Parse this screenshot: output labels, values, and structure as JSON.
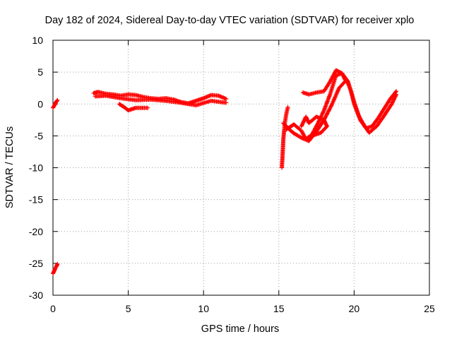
{
  "colors": {
    "series": "#ff0000",
    "axis": "#000000",
    "grid": "#a0a0a0",
    "background": "#ffffff"
  },
  "chart_data": {
    "type": "scatter",
    "title": "Day 182 of 2024, Sidereal Day-to-day VTEC variation (SDTVAR) for receiver xplo",
    "xlabel": "GPS time / hours",
    "ylabel": "SDTVAR / TECUs",
    "xlim": [
      0,
      25
    ],
    "ylim": [
      -30,
      10
    ],
    "xticks": [
      "0",
      "5",
      "10",
      "15",
      "20",
      "25"
    ],
    "yticks": [
      "-30",
      "-25",
      "-20",
      "-15",
      "-10",
      "-5",
      "0",
      "5",
      "10"
    ],
    "grid": true,
    "marker": "+",
    "series": [
      {
        "name": "SDTVAR",
        "segments": [
          [
            [
              0.0,
              -0.6
            ],
            [
              0.1,
              -0.2
            ],
            [
              0.2,
              0.3
            ],
            [
              0.3,
              0.6
            ]
          ],
          [
            [
              0.0,
              -26.6
            ],
            [
              0.08,
              -26.2
            ],
            [
              0.15,
              -25.8
            ],
            [
              0.22,
              -25.5
            ],
            [
              0.3,
              -25.1
            ]
          ],
          [
            [
              2.7,
              1.7
            ],
            [
              3.0,
              1.9
            ],
            [
              3.5,
              1.6
            ],
            [
              4.0,
              1.5
            ],
            [
              4.5,
              1.3
            ],
            [
              5.0,
              1.5
            ],
            [
              5.5,
              1.4
            ],
            [
              6.0,
              1.1
            ],
            [
              6.5,
              0.9
            ],
            [
              7.0,
              0.8
            ],
            [
              7.5,
              0.9
            ],
            [
              8.0,
              0.7
            ],
            [
              8.5,
              0.3
            ],
            [
              9.0,
              0.1
            ],
            [
              9.5,
              0.5
            ],
            [
              10.0,
              0.9
            ],
            [
              10.5,
              1.4
            ],
            [
              11.0,
              1.3
            ],
            [
              11.5,
              0.8
            ]
          ],
          [
            [
              2.8,
              1.2
            ],
            [
              3.5,
              1.3
            ],
            [
              4.5,
              0.9
            ],
            [
              5.5,
              0.6
            ],
            [
              6.5,
              0.7
            ],
            [
              7.5,
              0.5
            ],
            [
              8.5,
              0.2
            ],
            [
              9.5,
              -0.2
            ],
            [
              10.5,
              0.5
            ],
            [
              11.5,
              0.2
            ]
          ],
          [
            [
              4.4,
              0.0
            ],
            [
              4.8,
              -0.6
            ],
            [
              5.0,
              -1.0
            ],
            [
              5.5,
              -0.6
            ],
            [
              6.0,
              -0.6
            ],
            [
              6.3,
              -0.6
            ]
          ],
          [
            [
              15.2,
              -10.0
            ],
            [
              15.25,
              -8.0
            ],
            [
              15.3,
              -5.5
            ],
            [
              15.4,
              -3.0
            ],
            [
              15.5,
              -1.5
            ],
            [
              15.6,
              -0.5
            ]
          ],
          [
            [
              15.3,
              -3.0
            ],
            [
              15.7,
              -4.0
            ],
            [
              16.0,
              -4.6
            ],
            [
              16.5,
              -5.3
            ],
            [
              17.0,
              -5.8
            ],
            [
              17.5,
              -4.3
            ],
            [
              18.0,
              -2.5
            ],
            [
              18.5,
              -0.2
            ],
            [
              19.0,
              2.5
            ],
            [
              19.5,
              3.8
            ],
            [
              19.8,
              2.0
            ],
            [
              20.0,
              0.0
            ],
            [
              20.3,
              -1.8
            ],
            [
              20.7,
              -3.5
            ],
            [
              21.0,
              -4.5
            ],
            [
              21.5,
              -3.5
            ],
            [
              22.0,
              -1.8
            ],
            [
              22.5,
              0.0
            ],
            [
              22.8,
              1.5
            ]
          ],
          [
            [
              15.5,
              -4.0
            ],
            [
              16.0,
              -3.2
            ],
            [
              16.5,
              -4.2
            ],
            [
              16.8,
              -5.5
            ],
            [
              17.2,
              -4.8
            ],
            [
              17.6,
              -3.0
            ],
            [
              18.0,
              -1.0
            ],
            [
              18.4,
              1.5
            ],
            [
              18.8,
              4.5
            ],
            [
              19.2,
              4.8
            ],
            [
              19.6,
              3.5
            ],
            [
              20.0,
              0.3
            ],
            [
              20.4,
              -2.5
            ],
            [
              20.8,
              -3.8
            ],
            [
              21.2,
              -3.5
            ],
            [
              21.6,
              -2.2
            ],
            [
              22.0,
              -0.7
            ],
            [
              22.4,
              0.8
            ],
            [
              22.8,
              2.0
            ]
          ],
          [
            [
              16.6,
              1.8
            ],
            [
              17.0,
              1.5
            ],
            [
              17.5,
              1.8
            ],
            [
              18.0,
              2.0
            ],
            [
              18.4,
              3.5
            ],
            [
              18.8,
              5.3
            ],
            [
              19.2,
              4.8
            ],
            [
              19.4,
              3.8
            ]
          ],
          [
            [
              16.5,
              -3.5
            ],
            [
              16.8,
              -2.0
            ],
            [
              17.0,
              -3.0
            ],
            [
              17.5,
              -2.0
            ],
            [
              18.0,
              -2.5
            ],
            [
              18.2,
              -3.5
            ],
            [
              17.8,
              -4.5
            ],
            [
              17.2,
              -5.0
            ]
          ]
        ]
      }
    ]
  }
}
